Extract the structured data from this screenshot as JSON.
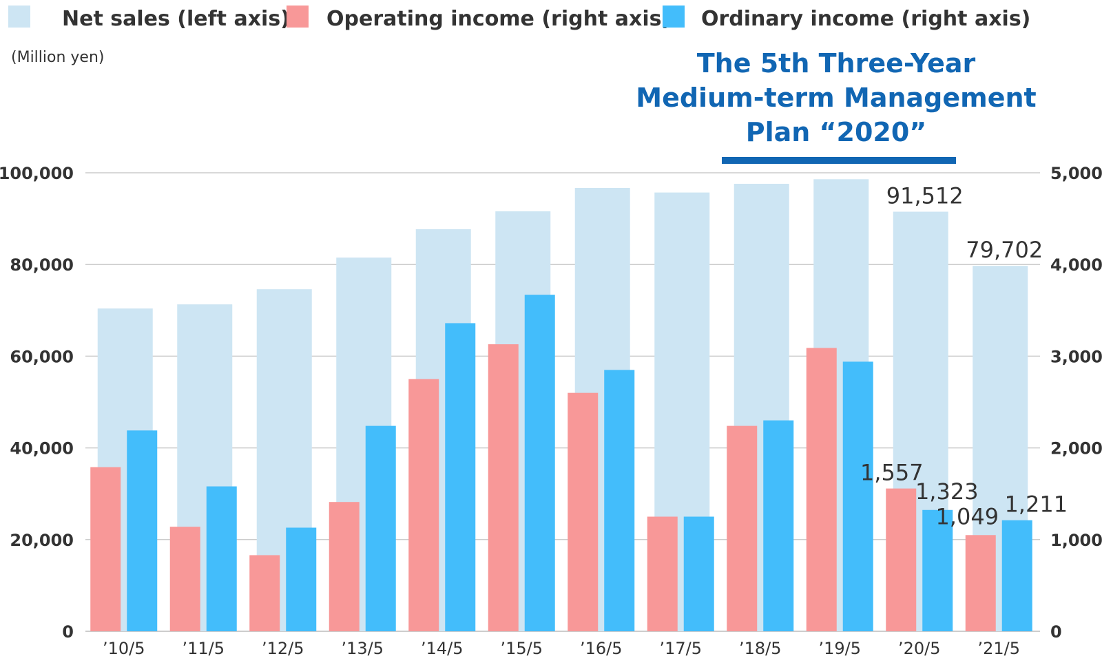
{
  "colors": {
    "net_sales": "#cde5f3",
    "operating_income": "#f89898",
    "ordinary_income": "#43bdfb",
    "plan": "#1166b3",
    "grid": "#cccccc",
    "text": "#333333"
  },
  "legend": {
    "net_sales": "Net sales (left axis)",
    "operating_income": "Operating income (right axis)",
    "ordinary_income": "Ordinary income (right axis)"
  },
  "unit_label": "(Million yen)",
  "plan": {
    "line1": "The 5th Three-Year",
    "line2": "Medium-term Management",
    "line3": "Plan “2020”",
    "span_categories": [
      "’18/5",
      "’19/5",
      "’20/5"
    ]
  },
  "chart_data": {
    "type": "bar",
    "categories": [
      "’10/5",
      "’11/5",
      "’12/5",
      "’13/5",
      "’14/5",
      "’15/5",
      "’16/5",
      "’17/5",
      "’18/5",
      "’19/5",
      "’20/5",
      "’21/5"
    ],
    "series": [
      {
        "name": "Net sales (left axis)",
        "axis": "left",
        "values": [
          70400,
          71300,
          74600,
          81500,
          87700,
          91600,
          96700,
          95700,
          97600,
          98600,
          91512,
          79702
        ]
      },
      {
        "name": "Operating income (right axis)",
        "axis": "right",
        "values": [
          1790,
          1140,
          830,
          1410,
          2750,
          3130,
          2600,
          1250,
          2240,
          3090,
          1557,
          1049
        ]
      },
      {
        "name": "Ordinary income (right axis)",
        "axis": "right",
        "values": [
          2190,
          1580,
          1130,
          2240,
          3360,
          3670,
          2850,
          1250,
          2300,
          2940,
          1323,
          1211
        ]
      }
    ],
    "left_axis": {
      "ylim": [
        0,
        100000
      ],
      "ticks": [
        "0",
        "20,000",
        "40,000",
        "60,000",
        "80,000",
        "100,000"
      ]
    },
    "right_axis": {
      "ylim": [
        0,
        5000
      ],
      "ticks": [
        "0",
        "1,000",
        "2,000",
        "3,000",
        "4,000",
        "5,000"
      ]
    },
    "data_labels": [
      {
        "category_index": 10,
        "series": 0,
        "text": "91,512"
      },
      {
        "category_index": 11,
        "series": 0,
        "text": "79,702"
      },
      {
        "category_index": 10,
        "series": 1,
        "text": "1,557"
      },
      {
        "category_index": 10,
        "series": 2,
        "text": "1,323"
      },
      {
        "category_index": 11,
        "series": 1,
        "text": "1,049"
      },
      {
        "category_index": 11,
        "series": 2,
        "text": "1,211"
      }
    ],
    "grid": true,
    "legend_position": "top"
  }
}
